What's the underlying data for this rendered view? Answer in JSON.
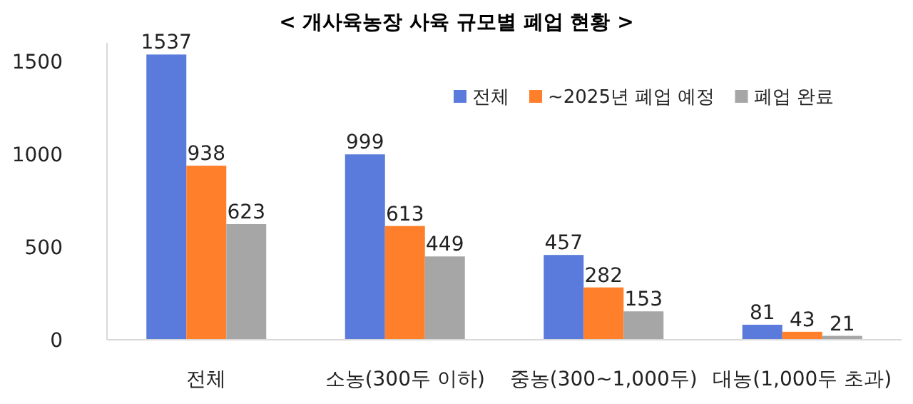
{
  "chart_data": {
    "type": "bar",
    "title": "< 개사육농장 사육 규모별 폐업 현황 >",
    "categories": [
      "전체",
      "소농(300두 이하)",
      "중농(300~1,000두)",
      "대농(1,000두 초과)"
    ],
    "series": [
      {
        "name": "전체",
        "color": "#5b7bdc",
        "values": [
          1537,
          999,
          457,
          81
        ]
      },
      {
        "name": "~2025년 폐업 예정",
        "color": "#ff7f2a",
        "values": [
          938,
          613,
          282,
          43
        ]
      },
      {
        "name": "폐업 완료",
        "color": "#a6a6a6",
        "values": [
          623,
          449,
          153,
          21
        ]
      }
    ],
    "ylim": [
      0,
      1600
    ],
    "yticks": [
      0,
      500,
      1000,
      1500
    ],
    "legend": "top right",
    "data_labels": true
  }
}
